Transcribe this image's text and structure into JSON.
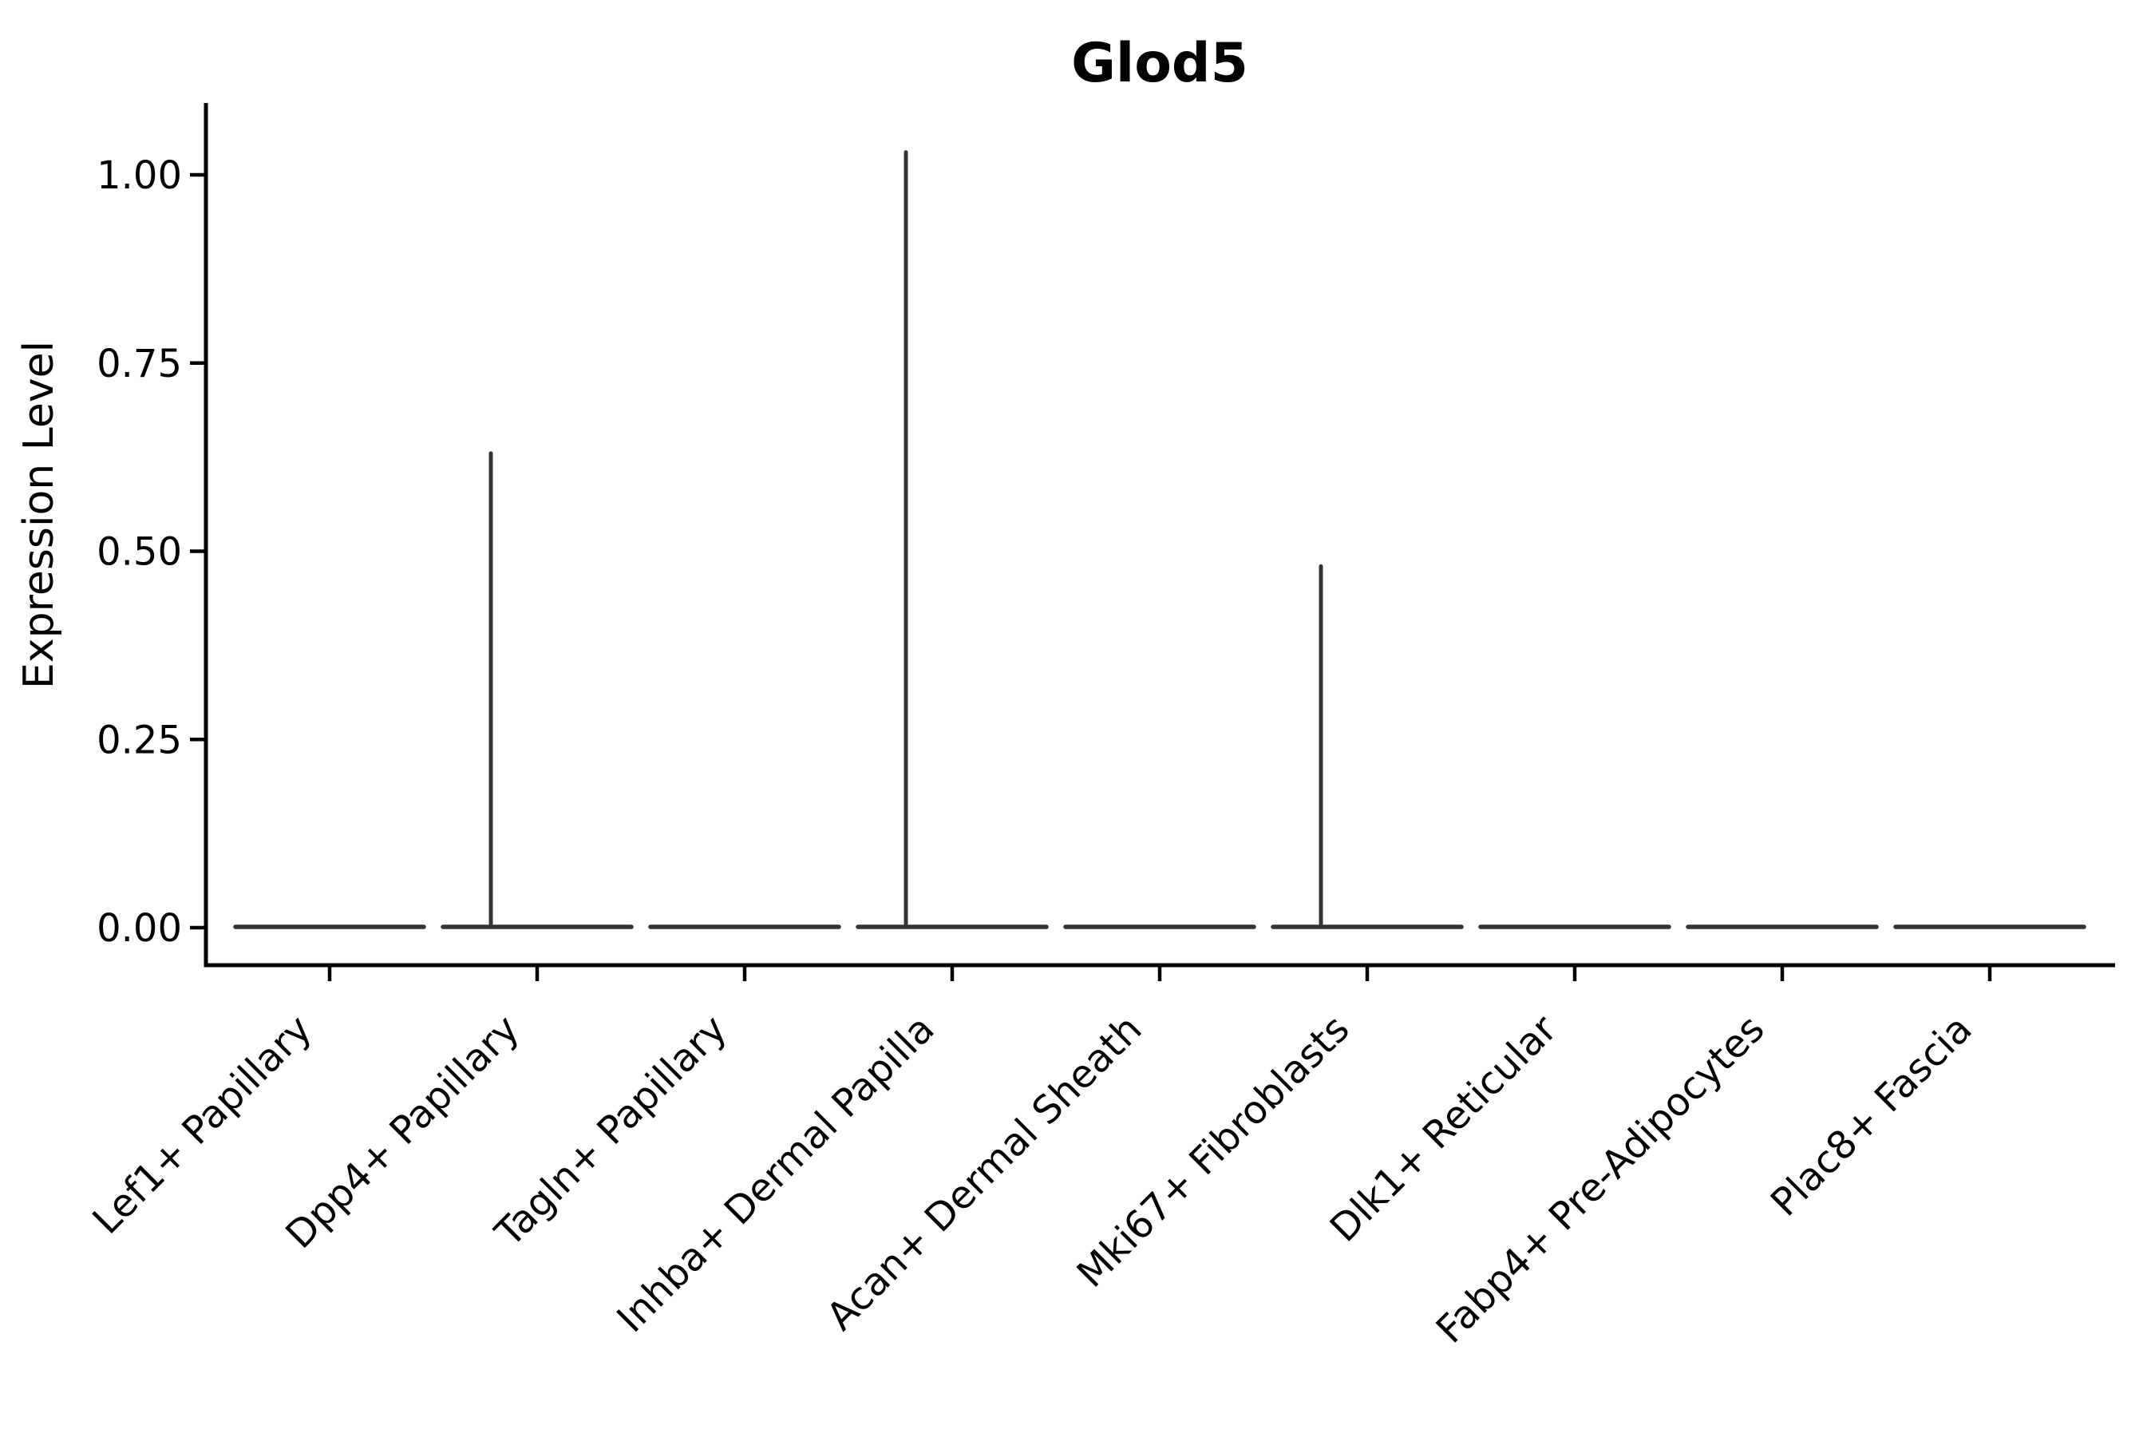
{
  "chart_data": {
    "type": "violin",
    "title": "Glod5",
    "ylabel": "Expression Level",
    "xlabel": "",
    "categories": [
      "Lef1+ Papillary",
      "Dpp4+ Papillary",
      "Tagln+ Papillary",
      "Inhba+ Dermal Papilla",
      "Acan+ Dermal Sheath",
      "Mki67+ Fibroblasts",
      "Dlk1+ Reticular",
      "Fabp4+ Pre-Adipocytes",
      "Plac8+ Fascia"
    ],
    "values": [
      0,
      0.63,
      0,
      1.03,
      0,
      0.48,
      0,
      0,
      0
    ],
    "values_note": "max expression spike per category; bulk of each distribution sits at 0 (flat violin)",
    "y_ticks": [
      0.0,
      0.25,
      0.5,
      0.75,
      1.0
    ],
    "y_tick_labels": [
      "0.00",
      "0.25",
      "0.50",
      "0.75",
      "1.00"
    ],
    "ylim": [
      -0.05,
      1.1
    ],
    "grid": false,
    "legend": null,
    "x_tick_label_rotation_deg": 45,
    "colors": {
      "axis": "#000000",
      "text": "#000000",
      "violin_line": "#343434",
      "background": "#ffffff"
    }
  }
}
